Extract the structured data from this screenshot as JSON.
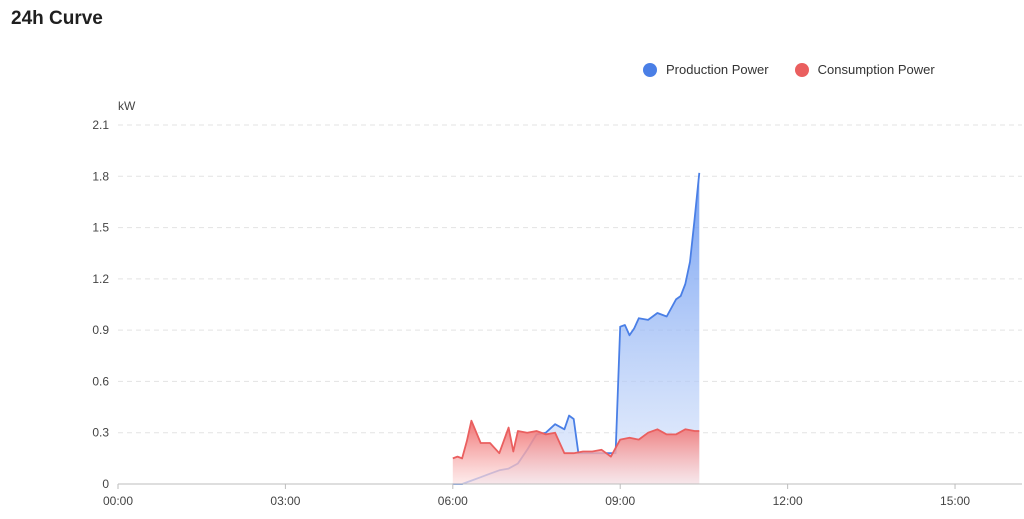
{
  "header": {
    "title": "24h Curve"
  },
  "chart_data": {
    "type": "area",
    "title": "24h Curve",
    "ylabel": "kW",
    "xlabel": "",
    "ylim": [
      0,
      2.1
    ],
    "xlim_hours": [
      0,
      16.2
    ],
    "yticks": [
      "0",
      "0.3",
      "0.6",
      "0.9",
      "1.2",
      "1.5",
      "1.8",
      "2.1"
    ],
    "yticks_values": [
      0,
      0.3,
      0.6,
      0.9,
      1.2,
      1.5,
      1.8,
      2.1
    ],
    "xticks": [
      "00:00",
      "03:00",
      "06:00",
      "09:00",
      "12:00",
      "15:00"
    ],
    "xticks_hours": [
      0,
      3,
      6,
      9,
      12,
      15
    ],
    "grid": "horizontal dashed",
    "legend_position": "top-right",
    "series": [
      {
        "name": "Production Power",
        "color": "#4a7fe6",
        "x": [
          "06:00",
          "06:10",
          "06:20",
          "06:30",
          "06:40",
          "06:50",
          "07:00",
          "07:10",
          "07:20",
          "07:30",
          "07:40",
          "07:50",
          "08:00",
          "08:05",
          "08:10",
          "08:15",
          "08:20",
          "08:30",
          "08:40",
          "08:50",
          "08:55",
          "09:00",
          "09:05",
          "09:10",
          "09:15",
          "09:20",
          "09:30",
          "09:40",
          "09:50",
          "10:00",
          "10:05",
          "10:10",
          "10:15",
          "10:20",
          "10:25"
        ],
        "values": [
          0.0,
          0.0,
          0.02,
          0.04,
          0.06,
          0.08,
          0.09,
          0.12,
          0.2,
          0.29,
          0.3,
          0.35,
          0.32,
          0.4,
          0.38,
          0.18,
          0.18,
          0.18,
          0.18,
          0.18,
          0.18,
          0.92,
          0.93,
          0.87,
          0.91,
          0.97,
          0.96,
          1.0,
          0.98,
          1.08,
          1.1,
          1.17,
          1.3,
          1.55,
          1.82
        ]
      },
      {
        "name": "Consumption Power",
        "color": "#ea5f5f",
        "x": [
          "06:00",
          "06:05",
          "06:10",
          "06:15",
          "06:20",
          "06:30",
          "06:40",
          "06:50",
          "07:00",
          "07:05",
          "07:10",
          "07:20",
          "07:30",
          "07:40",
          "07:50",
          "08:00",
          "08:10",
          "08:20",
          "08:30",
          "08:40",
          "08:50",
          "09:00",
          "09:10",
          "09:20",
          "09:30",
          "09:40",
          "09:50",
          "10:00",
          "10:10",
          "10:20",
          "10:25"
        ],
        "values": [
          0.15,
          0.16,
          0.15,
          0.25,
          0.37,
          0.24,
          0.24,
          0.18,
          0.33,
          0.19,
          0.31,
          0.3,
          0.31,
          0.29,
          0.3,
          0.18,
          0.18,
          0.19,
          0.19,
          0.2,
          0.16,
          0.26,
          0.27,
          0.26,
          0.3,
          0.32,
          0.29,
          0.29,
          0.32,
          0.31,
          0.31
        ]
      }
    ]
  }
}
